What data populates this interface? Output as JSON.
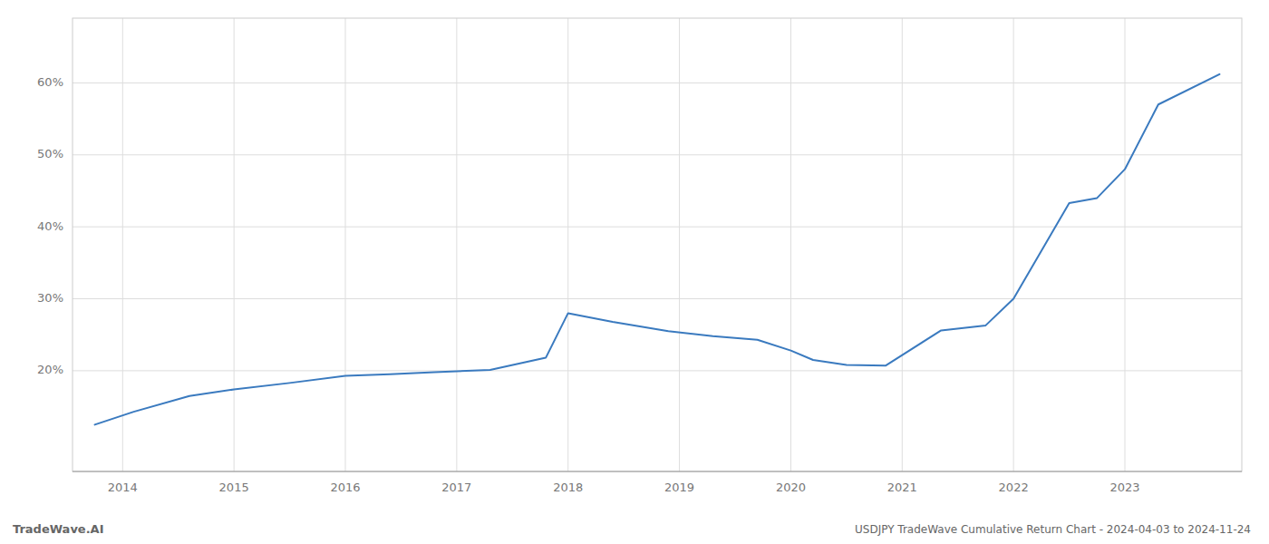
{
  "chart_data": {
    "type": "line",
    "title": "USDJPY TradeWave Cumulative Return Chart - 2024-04-03 to 2024-11-24",
    "annotations": [
      "TradeWave.AI"
    ],
    "x": [
      2013.75,
      2014.1,
      2014.6,
      2015.0,
      2015.5,
      2016.0,
      2016.4,
      2016.8,
      2017.3,
      2017.8,
      2018.0,
      2018.4,
      2018.9,
      2019.3,
      2019.7,
      2020.0,
      2020.2,
      2020.5,
      2020.85,
      2021.35,
      2021.75,
      2022.0,
      2022.5,
      2022.75,
      2023.0,
      2023.3,
      2023.85
    ],
    "values": [
      0.125,
      0.143,
      0.165,
      0.174,
      0.183,
      0.193,
      0.195,
      0.198,
      0.201,
      0.218,
      0.28,
      0.268,
      0.255,
      0.248,
      0.243,
      0.228,
      0.215,
      0.208,
      0.207,
      0.256,
      0.263,
      0.3,
      0.433,
      0.44,
      0.48,
      0.57,
      0.612
    ],
    "color": "#3a7abf",
    "xlim": [
      2013.55,
      2024.05
    ],
    "ylim": [
      0.06,
      0.69
    ],
    "xticks": [
      2014,
      2015,
      2016,
      2017,
      2018,
      2019,
      2020,
      2021,
      2022,
      2023
    ],
    "yticks": [
      {
        "value": 0.2,
        "label": "20%"
      },
      {
        "value": 0.3,
        "label": "30%"
      },
      {
        "value": 0.4,
        "label": "40%"
      },
      {
        "value": 0.5,
        "label": "50%"
      },
      {
        "value": 0.6,
        "label": "60%"
      }
    ],
    "grid": true
  }
}
